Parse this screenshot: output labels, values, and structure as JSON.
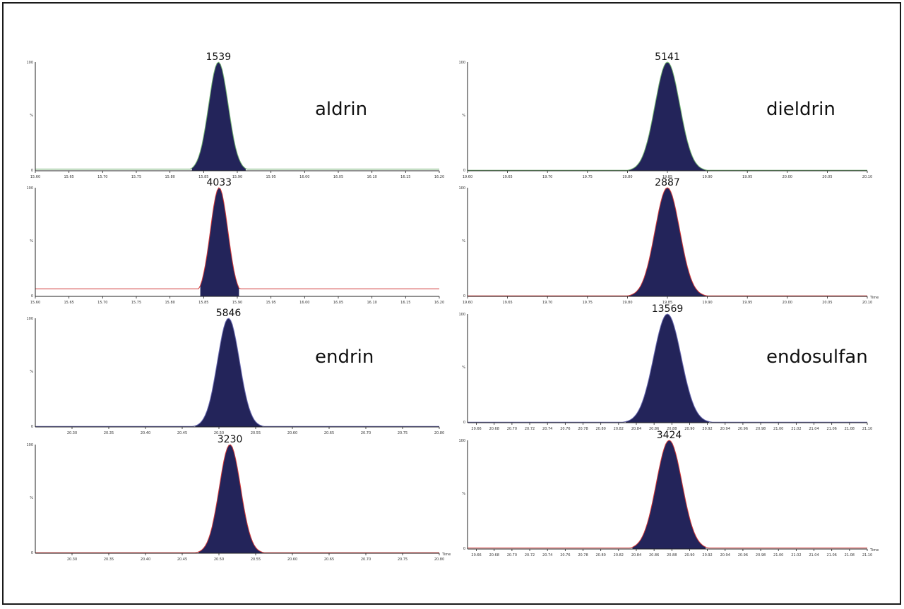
{
  "chart_data": [
    {
      "type": "area",
      "compound": "aldrin",
      "peak_label": "1539",
      "peak_rt": 15.872,
      "peak_sigma": 0.0145,
      "ylim": [
        0,
        100
      ],
      "yticks": [
        "100",
        "%",
        "0"
      ],
      "xlim": [
        15.6,
        16.2
      ],
      "xticks": [
        "15.60",
        "15.65",
        "15.70",
        "15.75",
        "15.80",
        "15.85",
        "15.90",
        "15.95",
        "16.00",
        "16.05",
        "16.10",
        "16.15",
        "16.20"
      ],
      "time_label": "",
      "baseline": 1.5,
      "baseline_color": "#6fae6f"
    },
    {
      "type": "area",
      "compound": "dieldrin",
      "peak_label": "5141",
      "peak_rt": 19.85,
      "peak_sigma": 0.0155,
      "ylim": [
        0,
        100
      ],
      "yticks": [
        "100",
        "%",
        "0"
      ],
      "xlim": [
        19.6,
        20.1
      ],
      "xticks": [
        "19.60",
        "19.65",
        "19.70",
        "19.75",
        "19.80",
        "19.85",
        "19.90",
        "19.95",
        "20.00",
        "20.05",
        "20.10"
      ],
      "time_label": "",
      "baseline": 0.5,
      "baseline_color": "#6fae6f"
    },
    {
      "type": "area",
      "compound": "",
      "peak_label": "4033",
      "peak_rt": 15.873,
      "peak_sigma": 0.013,
      "ylim": [
        0,
        100
      ],
      "yticks": [
        "100",
        "%",
        "0"
      ],
      "xlim": [
        15.6,
        16.2
      ],
      "xticks": [
        "15.60",
        "15.65",
        "15.70",
        "15.75",
        "15.80",
        "15.85",
        "15.90",
        "15.95",
        "16.00",
        "16.05",
        "16.10",
        "16.15",
        "16.20"
      ],
      "time_label": "",
      "baseline": 7,
      "baseline_color": "#d23a3a"
    },
    {
      "type": "area",
      "compound": "",
      "peak_label": "2887",
      "peak_rt": 19.85,
      "peak_sigma": 0.0155,
      "ylim": [
        0,
        100
      ],
      "yticks": [
        "100",
        "%",
        "0"
      ],
      "xlim": [
        19.6,
        20.1
      ],
      "xticks": [
        "19.60",
        "19.65",
        "19.70",
        "19.75",
        "19.80",
        "19.85",
        "19.90",
        "19.95",
        "20.00",
        "20.05",
        "20.10"
      ],
      "time_label": "Time",
      "baseline": 0.5,
      "baseline_color": "#d23a3a"
    },
    {
      "type": "area",
      "compound": "endrin",
      "peak_label": "5846",
      "peak_rt": 20.513,
      "peak_sigma": 0.015,
      "ylim": [
        0,
        100
      ],
      "yticks": [
        "100",
        "%",
        "0"
      ],
      "xlim": [
        20.25,
        20.8
      ],
      "xticks": [
        "20.30",
        "20.35",
        "20.40",
        "20.45",
        "20.50",
        "20.55",
        "20.60",
        "20.65",
        "20.70",
        "20.75",
        "20.80"
      ],
      "time_label": "",
      "baseline": 0.5,
      "baseline_color": "#6a6ab0"
    },
    {
      "type": "area",
      "compound": "endosulfan",
      "peak_label": "13569",
      "peak_rt": 20.875,
      "peak_sigma": 0.0155,
      "ylim": [
        0,
        100
      ],
      "yticks": [
        "100",
        "%",
        "0"
      ],
      "xlim": [
        20.65,
        21.1
      ],
      "xticks": [
        "20.66",
        "20.68",
        "20.70",
        "20.72",
        "20.74",
        "20.76",
        "20.78",
        "20.80",
        "20.82",
        "20.84",
        "20.86",
        "20.88",
        "20.90",
        "20.92",
        "20.94",
        "20.96",
        "20.98",
        "21.00",
        "21.02",
        "21.04",
        "21.06",
        "21.08",
        "21.10"
      ],
      "time_label": "",
      "baseline": 0.5,
      "baseline_color": "#6a6ab0"
    },
    {
      "type": "area",
      "compound": "",
      "peak_label": "3230",
      "peak_rt": 20.515,
      "peak_sigma": 0.0145,
      "ylim": [
        0,
        100
      ],
      "yticks": [
        "100",
        "%",
        "0"
      ],
      "xlim": [
        20.25,
        20.8
      ],
      "xticks": [
        "20.30",
        "20.35",
        "20.40",
        "20.45",
        "20.50",
        "20.55",
        "20.60",
        "20.65",
        "20.70",
        "20.75",
        "20.80"
      ],
      "time_label": "Time",
      "baseline": 0.5,
      "baseline_color": "#d23a3a"
    },
    {
      "type": "area",
      "compound": "",
      "peak_label": "3424",
      "peak_rt": 20.877,
      "peak_sigma": 0.0145,
      "ylim": [
        0,
        100
      ],
      "yticks": [
        "100",
        "%",
        "0"
      ],
      "xlim": [
        20.65,
        21.1
      ],
      "xticks": [
        "20.66",
        "20.68",
        "20.70",
        "20.72",
        "20.74",
        "20.76",
        "20.78",
        "20.80",
        "20.82",
        "20.84",
        "20.86",
        "20.88",
        "20.90",
        "20.92",
        "20.94",
        "20.96",
        "20.98",
        "21.00",
        "21.02",
        "21.04",
        "21.06",
        "21.08",
        "21.10"
      ],
      "time_label": "Time",
      "baseline": 1.0,
      "baseline_color": "#d23a3a"
    }
  ],
  "colors": {
    "peak_fill": "#23245a",
    "peak_outline": "#c43a3a"
  }
}
